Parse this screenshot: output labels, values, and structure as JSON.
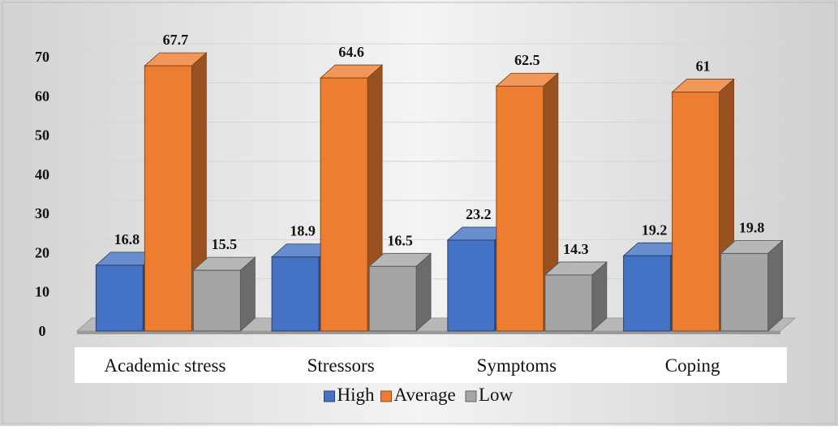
{
  "chart_data": {
    "type": "bar",
    "title": "",
    "xlabel": "",
    "ylabel": "",
    "ylim": [
      0,
      70
    ],
    "yticks": [
      0,
      10,
      20,
      30,
      40,
      50,
      60,
      70
    ],
    "grid": true,
    "legend_position": "bottom",
    "style": "3d-clustered-column",
    "categories": [
      "Academic stress",
      "Stressors",
      "Symptoms",
      "Coping"
    ],
    "series": [
      {
        "name": "High",
        "color": "#4472c4",
        "values": [
          16.8,
          18.9,
          23.2,
          19.2
        ]
      },
      {
        "name": "Average",
        "color": "#ed7d31",
        "values": [
          67.7,
          64.6,
          62.5,
          61
        ]
      },
      {
        "name": "Low",
        "color": "#a5a5a5",
        "values": [
          15.5,
          16.5,
          14.3,
          19.8
        ]
      }
    ]
  }
}
